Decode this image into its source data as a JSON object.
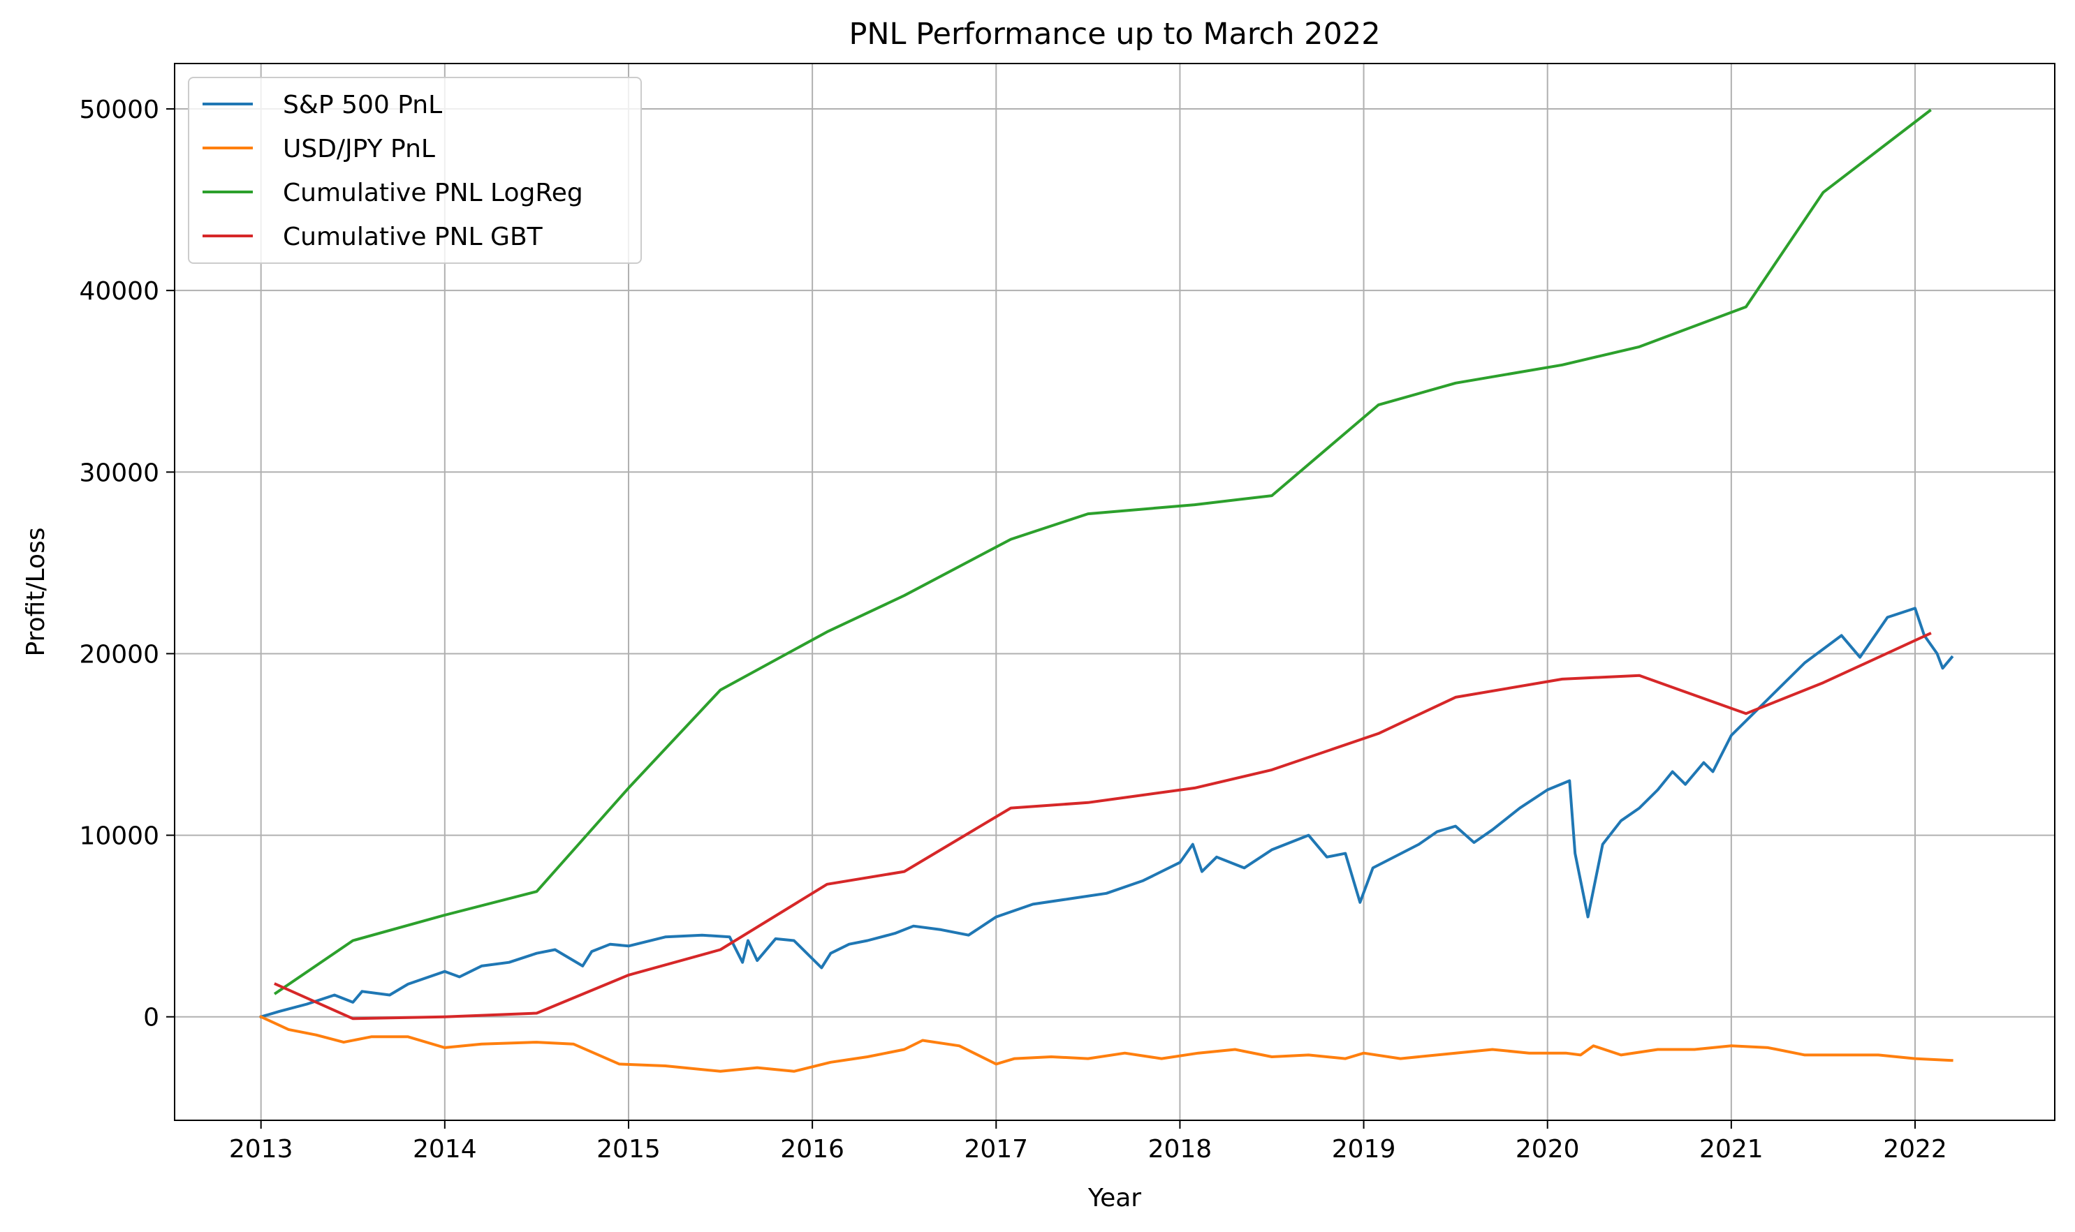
{
  "chart_data": {
    "type": "line",
    "title": "PNL Performance up to March 2022",
    "xlabel": "Year",
    "ylabel": "Profit/Loss",
    "xlim": [
      2012.53,
      2022.76
    ],
    "ylim": [
      -5700,
      52500
    ],
    "x_ticks": [
      "2013",
      "2014",
      "2015",
      "2016",
      "2017",
      "2018",
      "2019",
      "2020",
      "2021",
      "2022"
    ],
    "y_ticks": [
      0,
      10000,
      20000,
      30000,
      40000,
      50000
    ],
    "grid": true,
    "legend_position": "top-left",
    "series": [
      {
        "name": "S&P 500 PnL",
        "color": "#1f77b4",
        "x": [
          2013.0,
          2013.1,
          2013.25,
          2013.4,
          2013.5,
          2013.55,
          2013.7,
          2013.8,
          2014.0,
          2014.08,
          2014.2,
          2014.35,
          2014.5,
          2014.6,
          2014.75,
          2014.8,
          2014.9,
          2015.0,
          2015.2,
          2015.4,
          2015.55,
          2015.62,
          2015.65,
          2015.7,
          2015.8,
          2015.9,
          2016.05,
          2016.1,
          2016.2,
          2016.3,
          2016.45,
          2016.55,
          2016.7,
          2016.85,
          2017.0,
          2017.2,
          2017.4,
          2017.6,
          2017.8,
          2018.0,
          2018.07,
          2018.12,
          2018.2,
          2018.35,
          2018.5,
          2018.7,
          2018.8,
          2018.9,
          2018.98,
          2019.05,
          2019.3,
          2019.4,
          2019.5,
          2019.6,
          2019.7,
          2019.85,
          2020.0,
          2020.12,
          2020.15,
          2020.22,
          2020.3,
          2020.4,
          2020.5,
          2020.6,
          2020.68,
          2020.75,
          2020.85,
          2020.9,
          2021.0,
          2021.2,
          2021.4,
          2021.6,
          2021.7,
          2021.85,
          2022.0,
          2022.05,
          2022.12,
          2022.15,
          2022.2
        ],
        "values": [
          0,
          300,
          700,
          1200,
          800,
          1400,
          1200,
          1800,
          2500,
          2200,
          2800,
          3000,
          3500,
          3700,
          2800,
          3600,
          4000,
          3900,
          4400,
          4500,
          4400,
          3000,
          4200,
          3100,
          4300,
          4200,
          2700,
          3500,
          4000,
          4200,
          4600,
          5000,
          4800,
          4500,
          5500,
          6200,
          6500,
          6800,
          7500,
          8500,
          9500,
          8000,
          8800,
          8200,
          9200,
          10000,
          8800,
          9000,
          6300,
          8200,
          9500,
          10200,
          10500,
          9600,
          10300,
          11500,
          12500,
          13000,
          9000,
          5500,
          9500,
          10800,
          11500,
          12500,
          13500,
          12800,
          14000,
          13500,
          15500,
          17500,
          19500,
          21000,
          19800,
          22000,
          22500,
          21000,
          20000,
          19200,
          19800
        ]
      },
      {
        "name": "USD/JPY PnL",
        "color": "#ff7f0e",
        "x": [
          2013.0,
          2013.15,
          2013.3,
          2013.45,
          2013.6,
          2013.8,
          2014.0,
          2014.2,
          2014.5,
          2014.7,
          2014.95,
          2015.2,
          2015.5,
          2015.7,
          2015.9,
          2016.1,
          2016.3,
          2016.5,
          2016.6,
          2016.8,
          2017.0,
          2017.1,
          2017.3,
          2017.5,
          2017.7,
          2017.9,
          2018.1,
          2018.3,
          2018.5,
          2018.7,
          2018.9,
          2019.0,
          2019.2,
          2019.5,
          2019.7,
          2019.9,
          2020.1,
          2020.18,
          2020.25,
          2020.4,
          2020.6,
          2020.8,
          2021.0,
          2021.2,
          2021.4,
          2021.6,
          2021.8,
          2022.0,
          2022.2
        ],
        "values": [
          0,
          -700,
          -1000,
          -1400,
          -1100,
          -1100,
          -1700,
          -1500,
          -1400,
          -1500,
          -2600,
          -2700,
          -3000,
          -2800,
          -3000,
          -2500,
          -2200,
          -1800,
          -1300,
          -1600,
          -2600,
          -2300,
          -2200,
          -2300,
          -2000,
          -2300,
          -2000,
          -1800,
          -2200,
          -2100,
          -2300,
          -2000,
          -2300,
          -2000,
          -1800,
          -2000,
          -2000,
          -2100,
          -1600,
          -2100,
          -1800,
          -1800,
          -1600,
          -1700,
          -2100,
          -2100,
          -2100,
          -2300,
          -2400
        ]
      },
      {
        "name": "Cumulative PNL LogReg",
        "color": "#2ca02c",
        "x": [
          2013.08,
          2013.5,
          2014.0,
          2014.5,
          2015.0,
          2015.5,
          2016.08,
          2016.5,
          2017.08,
          2017.5,
          2018.08,
          2018.5,
          2019.08,
          2019.5,
          2020.08,
          2020.5,
          2021.08,
          2021.5,
          2022.08
        ],
        "values": [
          1300,
          4200,
          5600,
          6900,
          12600,
          18000,
          21200,
          23200,
          26300,
          27700,
          28200,
          28700,
          33700,
          34900,
          35900,
          36900,
          39100,
          45400,
          49900
        ]
      },
      {
        "name": "Cumulative PNL GBT",
        "color": "#d62728",
        "x": [
          2013.08,
          2013.5,
          2014.0,
          2014.5,
          2015.0,
          2015.5,
          2016.08,
          2016.5,
          2017.08,
          2017.5,
          2018.08,
          2018.5,
          2019.08,
          2019.5,
          2020.08,
          2020.5,
          2021.08,
          2021.5,
          2022.08
        ],
        "values": [
          1800,
          -100,
          0,
          200,
          2300,
          3700,
          7300,
          8000,
          11500,
          11800,
          12600,
          13600,
          15600,
          17600,
          18600,
          18800,
          16700,
          18400,
          21100
        ]
      }
    ]
  }
}
